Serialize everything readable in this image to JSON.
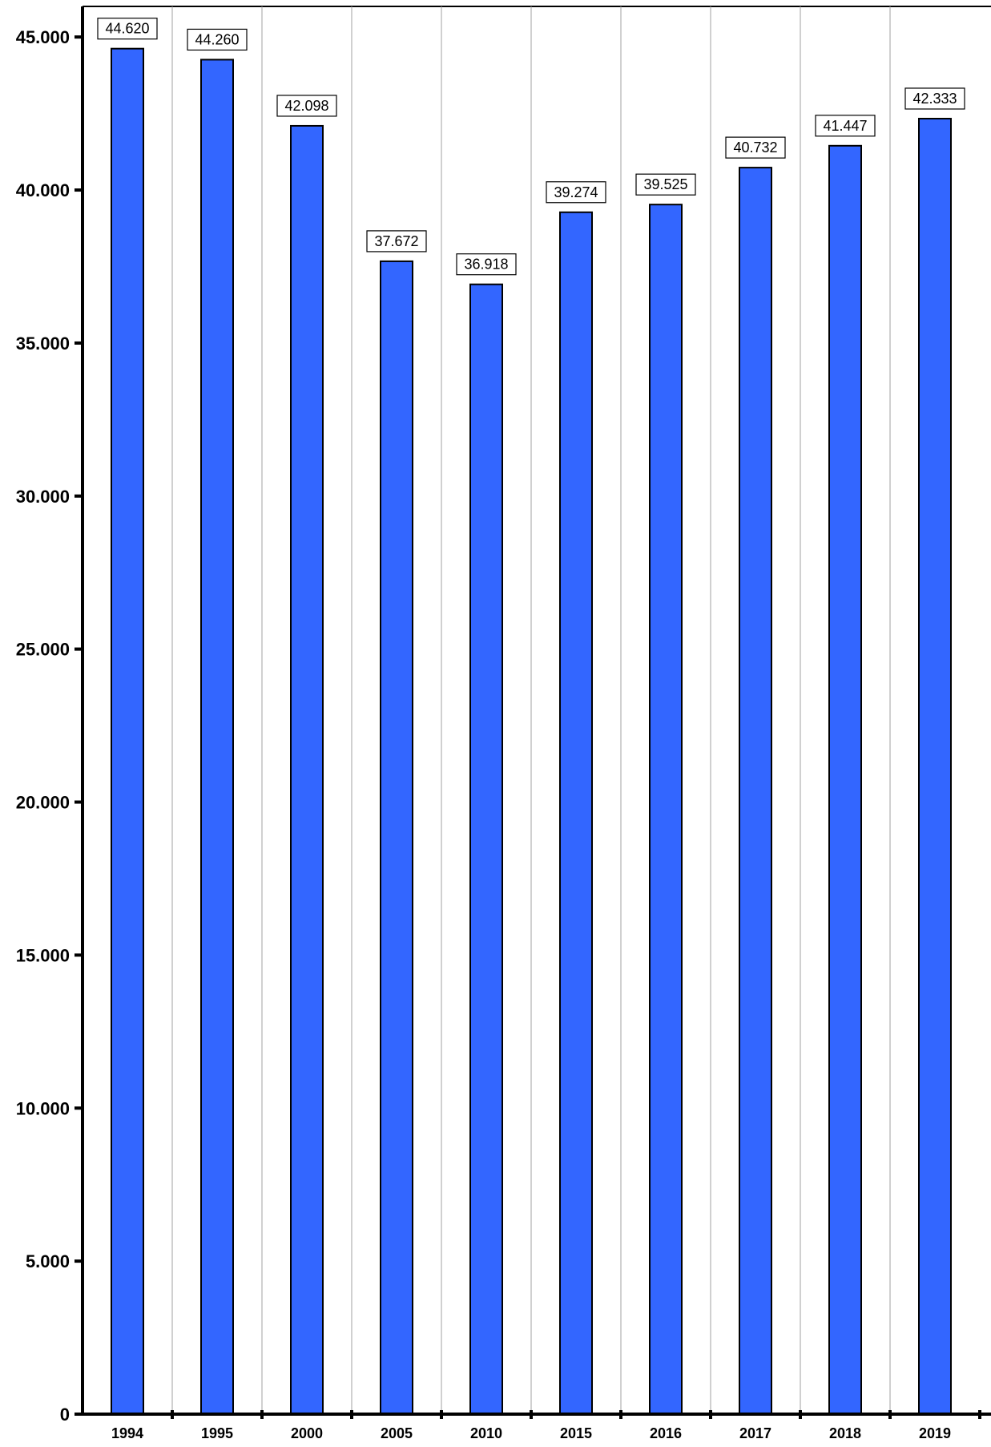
{
  "chart_data": {
    "type": "bar",
    "categories": [
      "1994",
      "1995",
      "2000",
      "2005",
      "2010",
      "2015",
      "2016",
      "2017",
      "2018",
      "2019"
    ],
    "values": [
      44620,
      44260,
      42098,
      37672,
      36918,
      39274,
      39525,
      40732,
      41447,
      42333
    ],
    "data_labels": [
      "44.620",
      "44.260",
      "42.098",
      "37.672",
      "36.918",
      "39.274",
      "39.525",
      "40.732",
      "41.447",
      "42.333"
    ],
    "yticks": [
      0,
      5000,
      10000,
      15000,
      20000,
      25000,
      30000,
      35000,
      40000,
      45000
    ],
    "ytick_labels": [
      "0",
      "5.000",
      "10.000",
      "15.000",
      "20.000",
      "25.000",
      "30.000",
      "35.000",
      "40.000",
      "45.000"
    ],
    "ylim": [
      0,
      46000
    ],
    "title": "",
    "xlabel": "",
    "ylabel": "",
    "grid": "vertical separators between categories",
    "legend": "none",
    "bar_color": "#3366ff",
    "bar_edge_color": "#000000"
  }
}
